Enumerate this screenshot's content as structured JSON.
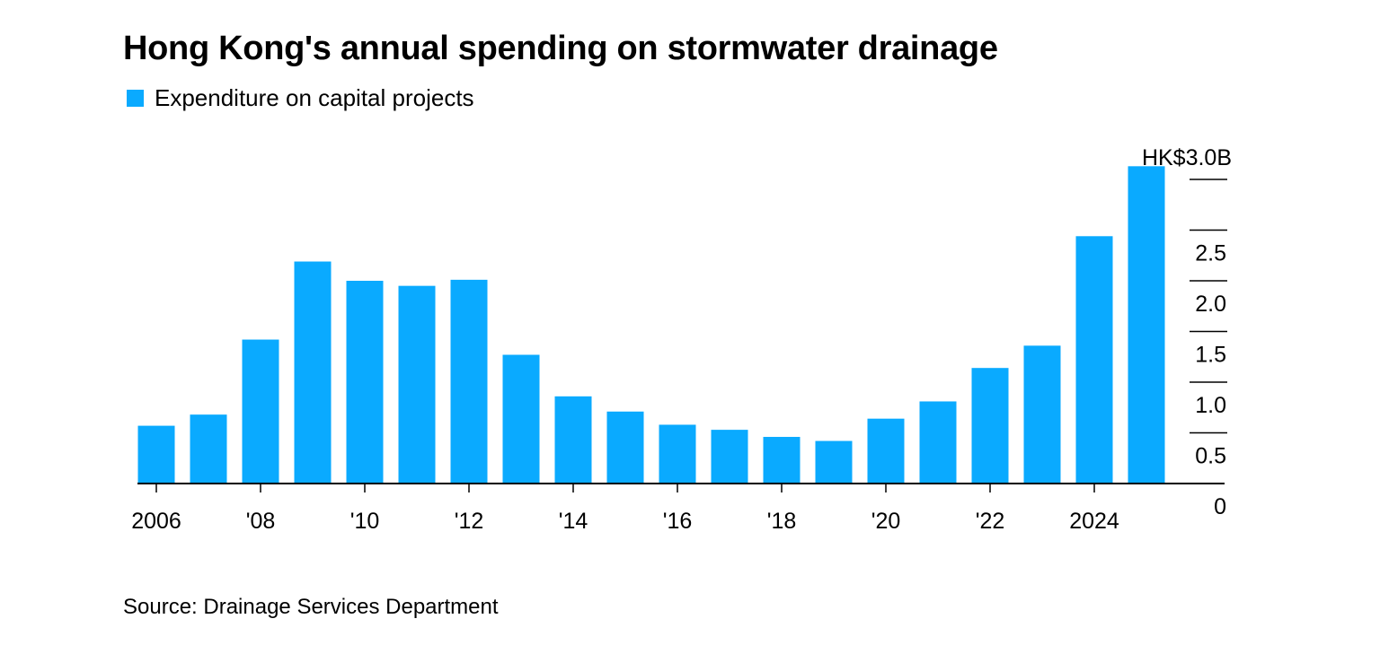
{
  "title": "Hong Kong's annual spending on stormwater drainage",
  "source": "Source: Drainage Services Department",
  "colors": {
    "bar": "#0aaaff",
    "axis": "#000000",
    "text": "#000000"
  },
  "chart_data": {
    "type": "bar",
    "title": "Hong Kong's annual spending on stormwater drainage",
    "xlabel": "",
    "ylabel": "",
    "legend": {
      "position": "top-left",
      "entries": [
        "Expenditure on capital projects"
      ]
    },
    "categories": [
      "2006",
      "2007",
      "2008",
      "2009",
      "2010",
      "2011",
      "2012",
      "2013",
      "2014",
      "2015",
      "2016",
      "2017",
      "2018",
      "2019",
      "2020",
      "2021",
      "2022",
      "2023",
      "2024",
      "2025"
    ],
    "series": [
      {
        "name": "Expenditure on capital projects",
        "values": [
          0.57,
          0.68,
          1.42,
          2.19,
          2.0,
          1.95,
          2.01,
          1.27,
          0.86,
          0.71,
          0.58,
          0.53,
          0.46,
          0.42,
          0.64,
          0.81,
          1.14,
          1.36,
          2.44,
          3.13
        ]
      }
    ],
    "ylim": [
      0,
      3.0
    ],
    "y_ticks": [
      {
        "value": 0,
        "label": "0"
      },
      {
        "value": 0.5,
        "label": "0.5"
      },
      {
        "value": 1.0,
        "label": "1.0"
      },
      {
        "value": 1.5,
        "label": "1.5"
      },
      {
        "value": 2.0,
        "label": "2.0"
      },
      {
        "value": 2.5,
        "label": "2.5"
      },
      {
        "value": 3.0,
        "label": "HK$3.0B"
      }
    ],
    "y_axis_side": "right",
    "x_ticks": [
      {
        "category": "2006",
        "label": "2006"
      },
      {
        "category": "2008",
        "label": "'08"
      },
      {
        "category": "2010",
        "label": "'10"
      },
      {
        "category": "2012",
        "label": "'12"
      },
      {
        "category": "2014",
        "label": "'14"
      },
      {
        "category": "2016",
        "label": "'16"
      },
      {
        "category": "2018",
        "label": "'18"
      },
      {
        "category": "2020",
        "label": "'20"
      },
      {
        "category": "2022",
        "label": "'22"
      },
      {
        "category": "2024",
        "label": "2024"
      }
    ],
    "grid": "right-side tick segments only",
    "units": "HK$ billions"
  }
}
